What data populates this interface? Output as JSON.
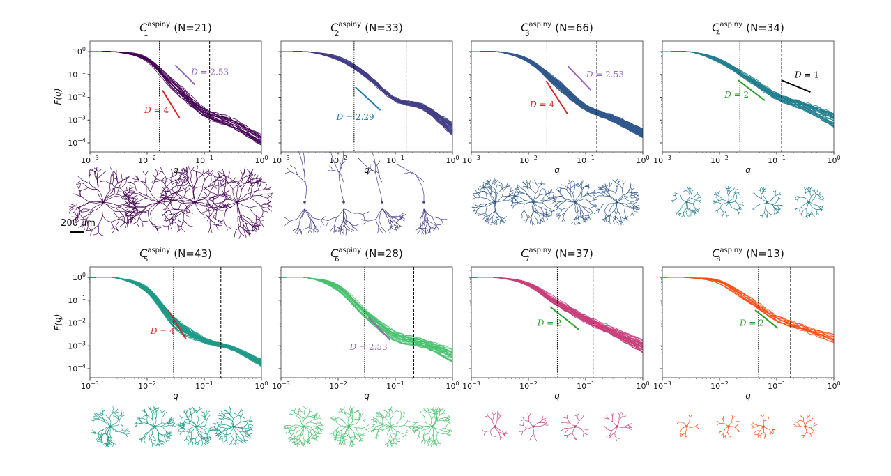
{
  "figure": {
    "scale_bar_label": "200 µm",
    "thumbnails_per_class": 4
  },
  "chart_data": [
    {
      "type": "line",
      "title": {
        "letter": "C",
        "sub": "1",
        "sup": "aspiny",
        "count": "(N=21)"
      },
      "xlabel": "q",
      "ylabel": "F(q)",
      "xscale": "log",
      "yscale": "log",
      "xlim": [
        0.001,
        1
      ],
      "ylim": [
        4e-05,
        2.9
      ],
      "xticks": [
        -3,
        -2,
        -1,
        0
      ],
      "yticks": [
        0,
        -1,
        -2,
        -3,
        -4
      ],
      "ytick_labels": true,
      "n_curves": 21,
      "color": "#440154",
      "vlines": {
        "dotted": 0.0164,
        "dashed": 0.124
      },
      "curve_band": {
        "q": [
          0.001,
          0.00316,
          0.01,
          0.0316,
          0.1,
          0.316,
          1
        ],
        "F_low": [
          1,
          0.93,
          0.32,
          0.0126,
          0.001,
          0.0004,
          6.3e-05
        ],
        "F_high": [
          1,
          0.98,
          0.63,
          0.063,
          0.005,
          0.0013,
          0.00025
        ]
      },
      "slope_refs": [
        {
          "label": "D = 2.53",
          "color": "#9467bd",
          "from": [
            0.031,
            0.257
          ],
          "to": [
            0.069,
            0.035
          ],
          "label_side": "right"
        },
        {
          "label": "D = 4",
          "color": "#d62728",
          "from": [
            0.0186,
            0.02
          ],
          "to": [
            0.037,
            0.00123
          ],
          "label_side": "left"
        }
      ]
    },
    {
      "type": "line",
      "title": {
        "letter": "C",
        "sub": "2",
        "sup": "aspiny",
        "count": "(N=33)"
      },
      "xlabel": "q",
      "ylabel": "",
      "xscale": "log",
      "yscale": "log",
      "xlim": [
        0.001,
        1
      ],
      "ylim": [
        4e-05,
        2.9
      ],
      "xticks": [
        -3,
        -2,
        -1,
        0
      ],
      "yticks": [
        0,
        -1,
        -2,
        -3,
        -4
      ],
      "ytick_labels": false,
      "n_curves": 33,
      "color": "#433e85",
      "vlines": {
        "dotted": 0.019,
        "dashed": 0.155
      },
      "curve_band": {
        "q": [
          0.001,
          0.00316,
          0.01,
          0.0316,
          0.1,
          0.316,
          1
        ],
        "F_low": [
          1,
          0.95,
          0.4,
          0.063,
          0.0063,
          0.0025,
          0.0002
        ],
        "F_high": [
          1,
          0.98,
          0.63,
          0.126,
          0.01,
          0.005,
          0.00079
        ]
      },
      "slope_refs": [
        {
          "label": "D = 2.29",
          "color": "#1f77b4",
          "from": [
            0.02,
            0.028
          ],
          "to": [
            0.055,
            0.0027
          ],
          "label_side": "below"
        }
      ]
    },
    {
      "type": "line",
      "title": {
        "letter": "C",
        "sub": "3",
        "sup": "aspiny",
        "count": "(N=66)"
      },
      "xlabel": "q",
      "ylabel": "",
      "xscale": "log",
      "yscale": "log",
      "xlim": [
        0.001,
        1
      ],
      "ylim": [
        4e-05,
        2.9
      ],
      "xticks": [
        -3,
        -2,
        -1,
        0
      ],
      "yticks": [
        0,
        -1,
        -2,
        -3,
        -4
      ],
      "ytick_labels": false,
      "n_curves": 66,
      "color": "#31598c",
      "vlines": {
        "dotted": 0.021,
        "dashed": 0.157
      },
      "curve_band": {
        "q": [
          0.001,
          0.00316,
          0.01,
          0.0316,
          0.1,
          0.316,
          1
        ],
        "F_low": [
          1,
          0.95,
          0.32,
          0.025,
          0.0025,
          0.00079,
          0.00016
        ],
        "F_high": [
          1,
          0.98,
          0.5,
          0.063,
          0.005,
          0.0016,
          0.0004
        ]
      },
      "slope_refs": [
        {
          "label": "D = 2.53",
          "color": "#9467bd",
          "from": [
            0.049,
            0.23
          ],
          "to": [
            0.123,
            0.021
          ],
          "label_side": "right"
        },
        {
          "label": "D = 4",
          "color": "#d62728",
          "from": [
            0.0204,
            0.052
          ],
          "to": [
            0.048,
            0.0019
          ],
          "label_side": "left"
        }
      ]
    },
    {
      "type": "line",
      "title": {
        "letter": "C",
        "sub": "4",
        "sup": "aspiny",
        "count": "(N=34)"
      },
      "xlabel": "q",
      "ylabel": "",
      "xscale": "log",
      "yscale": "log",
      "xlim": [
        0.001,
        1
      ],
      "ylim": [
        4e-05,
        2.9
      ],
      "xticks": [
        -3,
        -2,
        -1,
        0
      ],
      "yticks": [
        0,
        -1,
        -2,
        -3,
        -4
      ],
      "ytick_labels": false,
      "n_curves": 34,
      "color": "#23808e",
      "vlines": {
        "dotted": 0.0227,
        "dashed": 0.122
      },
      "curve_band": {
        "q": [
          0.001,
          0.00316,
          0.01,
          0.0316,
          0.1,
          0.316,
          1
        ],
        "F_low": [
          1,
          0.95,
          0.32,
          0.05,
          0.0079,
          0.0025,
          0.0005
        ],
        "F_high": [
          1,
          0.98,
          0.5,
          0.1,
          0.016,
          0.0063,
          0.002
        ]
      },
      "slope_refs": [
        {
          "label": "D = 1",
          "color": "#000000",
          "from": [
            0.123,
            0.055
          ],
          "to": [
            0.39,
            0.017
          ],
          "label_side": "above"
        },
        {
          "label": "D = 2",
          "color": "#2ca02c",
          "from": [
            0.0214,
            0.055
          ],
          "to": [
            0.062,
            0.0072
          ],
          "label_side": "left"
        }
      ]
    },
    {
      "type": "line",
      "title": {
        "letter": "C",
        "sub": "5",
        "sup": "aspiny",
        "count": "(N=43)"
      },
      "xlabel": "q",
      "ylabel": "F(q)",
      "xscale": "log",
      "yscale": "log",
      "xlim": [
        0.001,
        1
      ],
      "ylim": [
        4e-05,
        2.9
      ],
      "xticks": [
        -3,
        -2,
        -1,
        0
      ],
      "yticks": [
        0,
        -1,
        -2,
        -3,
        -4
      ],
      "ytick_labels": true,
      "n_curves": 43,
      "color": "#1f9a87",
      "vlines": {
        "dotted": 0.029,
        "dashed": 0.195
      },
      "curve_band": {
        "q": [
          0.001,
          0.00316,
          0.01,
          0.0316,
          0.1,
          0.316,
          1
        ],
        "F_low": [
          1,
          0.89,
          0.2,
          0.005,
          0.00126,
          0.00063,
          0.000126
        ],
        "F_high": [
          1,
          0.95,
          0.4,
          0.02,
          0.0025,
          0.001,
          0.00025
        ]
      },
      "slope_refs": [
        {
          "label": "D = 4",
          "color": "#d62728",
          "from": [
            0.0234,
            0.037
          ],
          "to": [
            0.048,
            0.00195
          ],
          "label_side": "left"
        }
      ]
    },
    {
      "type": "line",
      "title": {
        "letter": "C",
        "sub": "6",
        "sup": "aspiny",
        "count": "(N=28)"
      },
      "xlabel": "q",
      "ylabel": "",
      "xscale": "log",
      "yscale": "log",
      "xlim": [
        0.001,
        1
      ],
      "ylim": [
        4e-05,
        2.9
      ],
      "xticks": [
        -3,
        -2,
        -1,
        0
      ],
      "yticks": [
        0,
        -1,
        -2,
        -3,
        -4
      ],
      "ytick_labels": false,
      "n_curves": 28,
      "color": "#48c16e",
      "vlines": {
        "dotted": 0.029,
        "dashed": 0.21
      },
      "curve_band": {
        "q": [
          0.001,
          0.00316,
          0.01,
          0.0316,
          0.1,
          0.316,
          1
        ],
        "F_low": [
          1,
          0.91,
          0.25,
          0.0126,
          0.0016,
          0.00079,
          0.0002
        ],
        "F_high": [
          1,
          0.95,
          0.5,
          0.04,
          0.005,
          0.002,
          0.00079
        ]
      },
      "slope_refs": [
        {
          "label": "D = 2.53",
          "color": "#9467bd",
          "from": [
            0.034,
            0.0178
          ],
          "to": [
            0.081,
            0.0018
          ],
          "label_side": "below"
        }
      ]
    },
    {
      "type": "line",
      "title": {
        "letter": "C",
        "sub": "7",
        "sup": "aspiny",
        "count": "(N=37)"
      },
      "xlabel": "q",
      "ylabel": "",
      "xscale": "log",
      "yscale": "log",
      "xlim": [
        0.001,
        1
      ],
      "ylim": [
        4e-05,
        2.9
      ],
      "xticks": [
        -3,
        -2,
        -1,
        0
      ],
      "yticks": [
        0,
        -1,
        -2,
        -3,
        -4
      ],
      "ytick_labels": false,
      "n_curves": 37,
      "color": "#c8407a",
      "vlines": {
        "dotted": 0.032,
        "dashed": 0.135
      },
      "curve_band": {
        "q": [
          0.001,
          0.00316,
          0.01,
          0.0316,
          0.1,
          0.316,
          1
        ],
        "F_low": [
          1,
          0.93,
          0.4,
          0.05,
          0.01,
          0.0025,
          0.0005
        ],
        "F_high": [
          1,
          0.98,
          0.63,
          0.126,
          0.025,
          0.0063,
          0.002
        ]
      },
      "slope_refs": [
        {
          "label": "D = 2",
          "color": "#2ca02c",
          "from": [
            0.024,
            0.052
          ],
          "to": [
            0.076,
            0.0052
          ],
          "label_side": "left"
        }
      ]
    },
    {
      "type": "line",
      "title": {
        "letter": "C",
        "sub": "8",
        "sup": "aspiny",
        "count": "(N=13)"
      },
      "xlabel": "q",
      "ylabel": "",
      "xscale": "log",
      "yscale": "log",
      "xlim": [
        0.001,
        1
      ],
      "ylim": [
        4e-05,
        2.9
      ],
      "xticks": [
        -3,
        -2,
        -1,
        0
      ],
      "yticks": [
        0,
        -1,
        -2,
        -3,
        -4
      ],
      "ytick_labels": false,
      "n_curves": 13,
      "color": "#ff4a12",
      "vlines": {
        "dotted": 0.048,
        "dashed": 0.175
      },
      "curve_band": {
        "q": [
          0.001,
          0.00316,
          0.01,
          0.0316,
          0.1,
          0.316,
          1
        ],
        "F_low": [
          1,
          0.95,
          0.5,
          0.063,
          0.01,
          0.004,
          0.00126
        ],
        "F_high": [
          1,
          0.98,
          0.79,
          0.2,
          0.025,
          0.0079,
          0.0032
        ]
      },
      "slope_refs": [
        {
          "label": "D = 2",
          "color": "#2ca02c",
          "from": [
            0.042,
            0.037
          ],
          "to": [
            0.105,
            0.0059
          ],
          "label_side": "left"
        }
      ]
    }
  ]
}
